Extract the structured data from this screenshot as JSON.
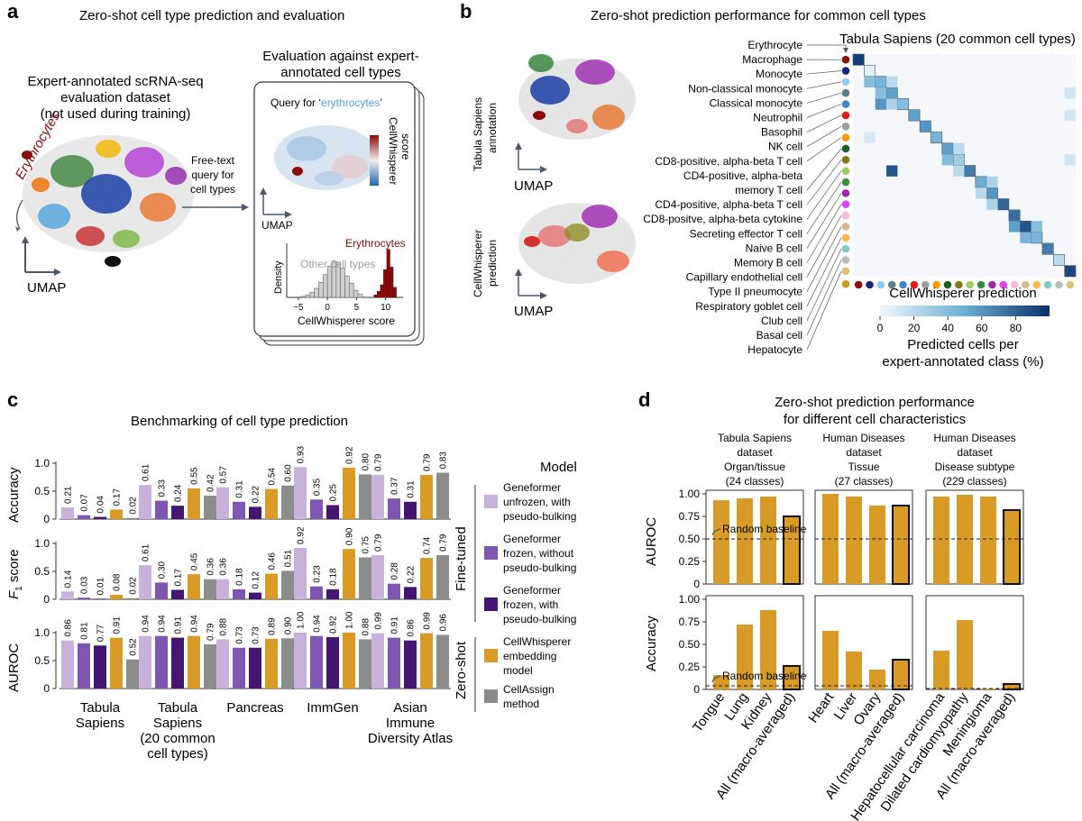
{
  "panel_labels": {
    "a": "a",
    "b": "b",
    "c": "c",
    "d": "d"
  },
  "panel_a": {
    "title": "Zero-shot cell type prediction and evaluation",
    "dataset_lines": [
      "Expert-annotated scRNA-seq",
      "evaluation dataset",
      "(not used during training)"
    ],
    "erythrocytes_label": "Erythrocytes",
    "umap_label": "UMAP",
    "query_lines": [
      "Free-text",
      "query for",
      "cell types"
    ],
    "eval_title_lines": [
      "Evaluation against expert-",
      "annotated cell types"
    ],
    "query_prefix": "Query for ‘",
    "query_term": "erythrocytes",
    "query_suffix": "’",
    "colorbar_lines": [
      "CellWhisperer",
      "score"
    ],
    "inner_umap_label": "UMAP",
    "hist": {
      "ylabel": "Density",
      "xlabel": "CellWhisperer score",
      "xticks": [
        "−5",
        "0",
        "5",
        "10"
      ],
      "other_label": "Other cell types",
      "target_label": "Erythrocytes",
      "other_heights": [
        0.02,
        0.05,
        0.1,
        0.18,
        0.3,
        0.45,
        0.62,
        0.72,
        0.7,
        0.58,
        0.42,
        0.28,
        0.14,
        0.06
      ],
      "target_heights": [
        0.05,
        0.12,
        0.25,
        0.55,
        0.95,
        0.6,
        0.2
      ]
    }
  },
  "panel_b": {
    "title": "Zero-shot prediction performance for common cell types",
    "umap_top_lines": [
      "Tabula Sapiens",
      "annotation"
    ],
    "umap_bottom_lines": [
      "CellWhisperer",
      "prediction"
    ],
    "umap_label": "UMAP",
    "heatmap_title": "Tabula Sapiens (20 common cell types)",
    "heatmap_xlabel": "CellWhisperer prediction",
    "colorbar_ticks": [
      "0",
      "20",
      "40",
      "60",
      "80"
    ],
    "colorbar_label_lines": [
      "Predicted cells per",
      "expert-annotated class (%)"
    ],
    "cell_types": [
      "Erythrocyte",
      "Macrophage",
      "Monocyte",
      "Non-classical monocyte",
      "Classical monocyte",
      "Neutrophil",
      "Basophil",
      "NK cell",
      "CD8-positive, alpha-beta T cell",
      "CD4-positive, alpha-beta",
      "memory T cell",
      "CD4-positive, alpha-beta T cell",
      "CD8-positve, alpha-beta cytokine",
      "Secreting effector T cell",
      "Naive B cell",
      "Memory B cell",
      "Capillary endothelial cell",
      "Type II pneumocyte",
      "Respiratory goblet cell",
      "Club cell",
      "Basal cell",
      "Hepatocyte"
    ],
    "dot_colors": [
      "#8b0a0a",
      "#1a237e",
      "#90caf9",
      "#607d8b",
      "#3f88c5",
      "#e41a1c",
      "#9e9e9e",
      "#ff9800",
      "#1b5e20",
      "#827717",
      "#9ccc65",
      "#388e3c",
      "#9c27b0",
      "#e040fb",
      "#f8bbd0",
      "#d7b98e",
      "#ffb74d",
      "#80cbc4",
      "#bdbdbd",
      "#e0c070",
      "#c8a020"
    ]
  },
  "panel_c": {
    "title": "Benchmarking of cell type prediction",
    "metrics": [
      "Accuracy",
      "F1 score",
      "AUROC"
    ],
    "f1_label": {
      "main": "F",
      "sub": "1",
      "rest": " score"
    },
    "yticks": [
      "0",
      "0.5",
      "1.0"
    ],
    "datasets": [
      [
        "Tabula",
        "Sapiens"
      ],
      [
        "Tabula",
        "Sapiens",
        "(20 common",
        "cell types)"
      ],
      [
        "Pancreas"
      ],
      [
        "ImmGen"
      ],
      [
        "Asian",
        "Immune",
        "Diversity Atlas"
      ]
    ],
    "legend_title": "Model",
    "group_labels": [
      "Fine-tuned",
      "Zero-shot"
    ],
    "legend": [
      {
        "lines": [
          "Geneformer",
          "unfrozen, with",
          "pseudo-bulking"
        ],
        "color": "#c9b2d9"
      },
      {
        "lines": [
          "Geneformer",
          "frozen, without",
          "pseudo-bulking"
        ],
        "color": "#7e57b0"
      },
      {
        "lines": [
          "Geneformer",
          "frozen, with",
          "pseudo-bulking"
        ],
        "color": "#43166f"
      },
      {
        "lines": [
          "CellWhisperer",
          "embedding",
          "model"
        ],
        "color": "#d89b26"
      },
      {
        "lines": [
          "CellAssign",
          "method"
        ],
        "color": "#8c8c8c"
      }
    ]
  },
  "panel_d": {
    "title_lines": [
      "Zero-shot prediction performance",
      "for different cell characteristics"
    ],
    "subplots": [
      {
        "header": [
          "Tabula Sapiens",
          "dataset",
          "Organ/tissue",
          "(24 classes)"
        ],
        "categories": [
          "Tongue",
          "Lung",
          "Kidney",
          "All (macro-averaged)"
        ]
      },
      {
        "header": [
          "Human Diseases",
          "dataset",
          "Tissue",
          "(27 classes)"
        ],
        "categories": [
          "Heart",
          "Liver",
          "Ovary",
          "All (macro-averaged)"
        ]
      },
      {
        "header": [
          "Human Diseases",
          "dataset",
          "Disease subtype",
          "(229 classes)"
        ],
        "categories": [
          "Hepatocellular carcinoma",
          "Dilated cardiomyopathy",
          "Meningioma",
          "All (macro-averaged)"
        ]
      }
    ],
    "ylabels": [
      "AUROC",
      "Accuracy"
    ],
    "yticks": [
      "0",
      "0.25",
      "0.50",
      "0.75",
      "1.00"
    ],
    "baseline_label": "Random baseline",
    "bar_color": "#d89b26"
  },
  "chart_data": [
    {
      "type": "bar",
      "title": "Benchmarking of cell type prediction",
      "categories": [
        "Tabula Sapiens",
        "Tabula Sapiens (20 common cell types)",
        "Pancreas",
        "ImmGen",
        "Asian Immune Diversity Atlas"
      ],
      "series_names": [
        "Geneformer unfrozen, with pseudo-bulking",
        "Geneformer frozen, without pseudo-bulking",
        "Geneformer frozen, with pseudo-bulking",
        "CellWhisperer embedding model",
        "CellAssign method"
      ],
      "ylim": [
        0,
        1.0
      ],
      "metrics": [
        {
          "name": "Accuracy",
          "values": [
            [
              0.21,
              0.07,
              0.04,
              0.17,
              0.02
            ],
            [
              0.61,
              0.33,
              0.24,
              0.55,
              0.42
            ],
            [
              0.57,
              0.31,
              0.22,
              0.54,
              0.6
            ],
            [
              0.93,
              0.35,
              0.25,
              0.92,
              0.8
            ],
            [
              0.79,
              0.37,
              0.31,
              0.79,
              0.83
            ]
          ]
        },
        {
          "name": "F1 score",
          "values": [
            [
              0.14,
              0.03,
              0.01,
              0.08,
              0.02
            ],
            [
              0.61,
              0.3,
              0.17,
              0.45,
              0.36
            ],
            [
              0.36,
              0.18,
              0.12,
              0.46,
              0.51
            ],
            [
              0.92,
              0.23,
              0.18,
              0.9,
              0.75
            ],
            [
              0.79,
              0.28,
              0.22,
              0.74,
              0.79
            ]
          ]
        },
        {
          "name": "AUROC",
          "values": [
            [
              0.86,
              0.81,
              0.77,
              0.91,
              0.52
            ],
            [
              0.94,
              0.94,
              0.91,
              0.94,
              0.79
            ],
            [
              0.88,
              0.73,
              0.73,
              0.89,
              0.9
            ],
            [
              1.0,
              0.94,
              0.92,
              1.0,
              0.88
            ],
            [
              0.99,
              0.91,
              0.86,
              0.99,
              0.96
            ]
          ]
        }
      ]
    },
    {
      "type": "bar",
      "ylim": [
        0,
        1.0
      ],
      "subplots": [
        {
          "categories": [
            "Tongue",
            "Lung",
            "Kidney",
            "All (macro-averaged)"
          ],
          "auroc": [
            0.93,
            0.95,
            0.97,
            0.75
          ],
          "auroc_baseline": 0.5,
          "accuracy": [
            0.16,
            0.72,
            0.88,
            0.26
          ],
          "accuracy_baseline": 0.04
        },
        {
          "categories": [
            "Heart",
            "Liver",
            "Ovary",
            "All (macro-averaged)"
          ],
          "auroc": [
            1.0,
            0.97,
            0.87,
            0.87
          ],
          "auroc_baseline": 0.5,
          "accuracy": [
            0.65,
            0.42,
            0.22,
            0.33
          ],
          "accuracy_baseline": 0.04
        },
        {
          "categories": [
            "Hepatocellular carcinoma",
            "Dilated cardiomyopathy",
            "Meningioma",
            "All (macro-averaged)"
          ],
          "auroc": [
            0.97,
            0.99,
            0.97,
            0.82
          ],
          "auroc_baseline": 0.5,
          "accuracy": [
            0.43,
            0.77,
            0.01,
            0.06
          ],
          "accuracy_baseline": 0.01
        }
      ]
    },
    {
      "type": "heatmap",
      "title": "Tabula Sapiens (20 common cell types)",
      "xlabel": "CellWhisperer prediction",
      "colorbar_range": [
        0,
        100
      ],
      "note": "approximate confusion matrix (% of expert-annotated class)",
      "diagonal": [
        95,
        5,
        45,
        55,
        40,
        55,
        60,
        45,
        55,
        30,
        70,
        50,
        60,
        80,
        75,
        85,
        45,
        70,
        20,
        90
      ],
      "off_diagonal": [
        [
          2,
          1,
          40
        ],
        [
          2,
          3,
          20
        ],
        [
          3,
          2,
          40
        ],
        [
          4,
          2,
          60
        ],
        [
          4,
          3,
          25
        ],
        [
          7,
          1,
          10
        ],
        [
          8,
          9,
          20
        ],
        [
          9,
          8,
          40
        ],
        [
          10,
          3,
          85
        ],
        [
          10,
          9,
          20
        ],
        [
          11,
          12,
          25
        ],
        [
          12,
          11,
          20
        ],
        [
          13,
          12,
          25
        ],
        [
          15,
          14,
          55
        ],
        [
          15,
          16,
          40
        ],
        [
          16,
          15,
          45
        ],
        [
          5,
          19,
          12
        ],
        [
          3,
          19,
          12
        ],
        [
          9,
          19,
          12
        ]
      ]
    }
  ]
}
